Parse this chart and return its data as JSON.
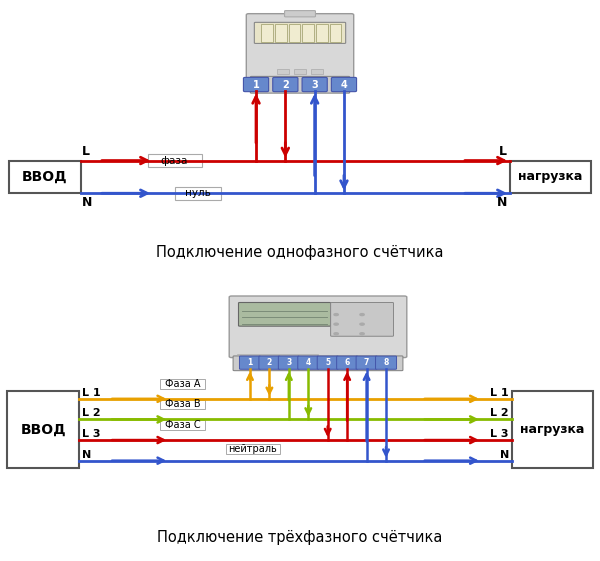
{
  "bg_color": "#ffffff",
  "single_phase": {
    "title": "Подключение однофазного счётчика",
    "vvod_label": "ВВОД",
    "nagruzka_label": "нагрузка",
    "L_label": "L",
    "N_label": "N",
    "faza_label": "фаза",
    "nul_label": "нуль",
    "phase_color": "#cc0000",
    "neutral_color": "#3355cc",
    "terminals": [
      "1",
      "2",
      "3",
      "4"
    ]
  },
  "three_phase": {
    "title": "Подключение трёхфазного счётчика",
    "vvod_label": "ВВОД",
    "nagruzka_label": "нагрузка",
    "faza_A_label": "Фаза А",
    "faza_B_label": "Фаза В",
    "faza_C_label": "Фаза С",
    "neytral_label": "нейтраль",
    "color_L1": "#e8a000",
    "color_L2": "#88bb00",
    "color_L3": "#cc0000",
    "color_N": "#3355cc",
    "terminals": [
      "1",
      "2",
      "3",
      "4",
      "5",
      "6",
      "7",
      "8"
    ]
  }
}
